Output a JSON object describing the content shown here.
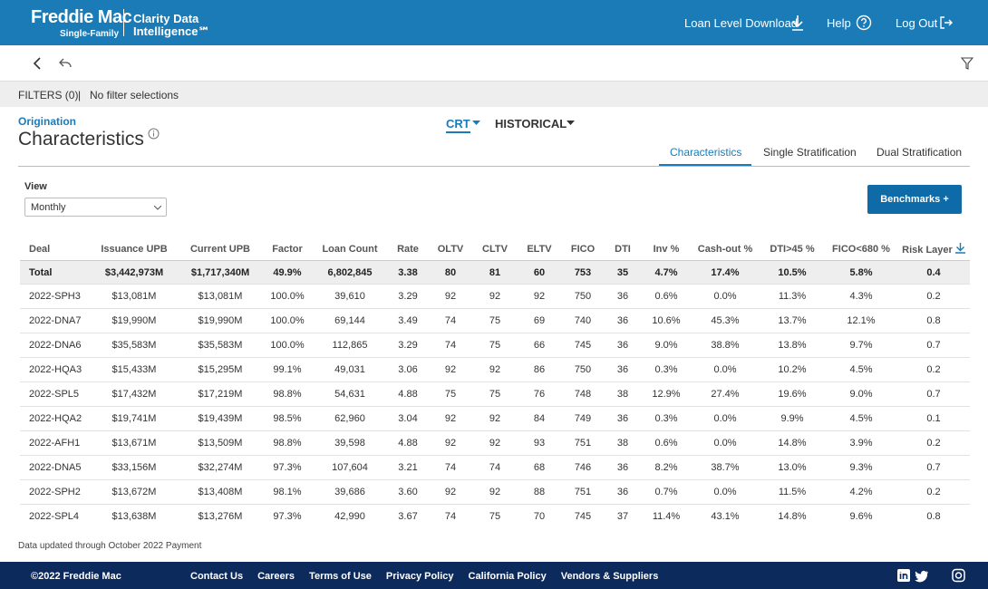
{
  "header": {
    "brand": "Freddie Mac",
    "brand_sub": "Single-Family",
    "product_line1": "Clarity Data",
    "product_line2": "Intelligence℠",
    "nav": [
      "Loan Level Download",
      "Help",
      "Log Out"
    ]
  },
  "filters": {
    "label": "FILTERS (0)",
    "separator": "|",
    "text": "No filter selections"
  },
  "page": {
    "eyebrow": "Origination",
    "title": "Characteristics",
    "dropdowns": [
      "CRT",
      "HISTORICAL"
    ],
    "tabs": [
      "Characteristics",
      "Single Stratification",
      "Dual Stratification"
    ],
    "view_label": "View",
    "view_value": "Monthly",
    "button": "Benchmarks +"
  },
  "table": {
    "columns": [
      "Deal",
      "Issuance UPB",
      "Current UPB",
      "Factor",
      "Loan Count",
      "Rate",
      "OLTV",
      "CLTV",
      "ELTV",
      "FICO",
      "DTI",
      "Inv %",
      "Cash-out %",
      "DTI>45 %",
      "FICO<680 %",
      "Risk Layer"
    ],
    "rows": [
      [
        "Total",
        "$3,442,973M",
        "$1,717,340M",
        "49.9%",
        "6,802,845",
        "3.38",
        "80",
        "81",
        "60",
        "753",
        "35",
        "4.7%",
        "17.4%",
        "10.5%",
        "5.8%",
        "0.4"
      ],
      [
        "2022-SPH3",
        "$13,081M",
        "$13,081M",
        "100.0%",
        "39,610",
        "3.29",
        "92",
        "92",
        "92",
        "750",
        "36",
        "0.6%",
        "0.0%",
        "11.3%",
        "4.3%",
        "0.2"
      ],
      [
        "2022-DNA7",
        "$19,990M",
        "$19,990M",
        "100.0%",
        "69,144",
        "3.49",
        "74",
        "75",
        "69",
        "740",
        "36",
        "10.6%",
        "45.3%",
        "13.7%",
        "12.1%",
        "0.8"
      ],
      [
        "2022-DNA6",
        "$35,583M",
        "$35,583M",
        "100.0%",
        "112,865",
        "3.29",
        "74",
        "75",
        "66",
        "745",
        "36",
        "9.0%",
        "38.8%",
        "13.8%",
        "9.7%",
        "0.7"
      ],
      [
        "2022-HQA3",
        "$15,433M",
        "$15,295M",
        "99.1%",
        "49,031",
        "3.06",
        "92",
        "92",
        "86",
        "750",
        "36",
        "0.3%",
        "0.0%",
        "10.2%",
        "4.5%",
        "0.2"
      ],
      [
        "2022-SPL5",
        "$17,432M",
        "$17,219M",
        "98.8%",
        "54,631",
        "4.88",
        "75",
        "75",
        "76",
        "748",
        "38",
        "12.9%",
        "27.4%",
        "19.6%",
        "9.0%",
        "0.7"
      ],
      [
        "2022-HQA2",
        "$19,741M",
        "$19,439M",
        "98.5%",
        "62,960",
        "3.04",
        "92",
        "92",
        "84",
        "749",
        "36",
        "0.3%",
        "0.0%",
        "9.9%",
        "4.5%",
        "0.1"
      ],
      [
        "2022-AFH1",
        "$13,671M",
        "$13,509M",
        "98.8%",
        "39,598",
        "4.88",
        "92",
        "92",
        "93",
        "751",
        "38",
        "0.6%",
        "0.0%",
        "14.8%",
        "3.9%",
        "0.2"
      ],
      [
        "2022-DNA5",
        "$33,156M",
        "$32,274M",
        "97.3%",
        "107,604",
        "3.21",
        "74",
        "74",
        "68",
        "746",
        "36",
        "8.2%",
        "38.7%",
        "13.0%",
        "9.3%",
        "0.7"
      ],
      [
        "2022-SPH2",
        "$13,672M",
        "$13,408M",
        "98.1%",
        "39,686",
        "3.60",
        "92",
        "92",
        "88",
        "751",
        "36",
        "0.7%",
        "0.0%",
        "11.5%",
        "4.2%",
        "0.2"
      ],
      [
        "2022-SPL4",
        "$13,638M",
        "$13,276M",
        "97.3%",
        "42,990",
        "3.67",
        "74",
        "75",
        "70",
        "745",
        "37",
        "11.4%",
        "43.1%",
        "14.8%",
        "9.6%",
        "0.8"
      ]
    ]
  },
  "note": "Data updated through October 2022 Payment",
  "footer": {
    "copyright": "©2022 Freddie Mac",
    "links": [
      "Contact Us",
      "Careers",
      "Terms of Use",
      "Privacy Policy",
      "California Policy",
      "Vendors & Suppliers"
    ]
  }
}
